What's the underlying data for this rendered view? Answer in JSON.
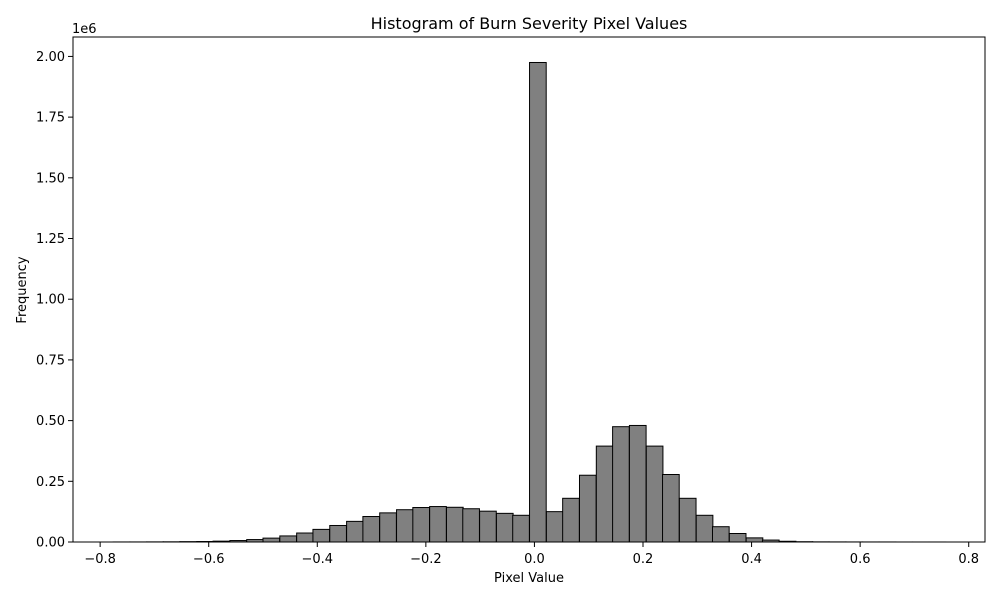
{
  "chart_data": {
    "type": "bar",
    "title": "Histogram of Burn Severity Pixel Values",
    "xlabel": "Pixel Value",
    "ylabel": "Frequency",
    "y_offset_text": "1e6",
    "xlim": [
      -0.85,
      0.83
    ],
    "ylim": [
      0,
      2.08
    ],
    "y_scale_factor": 1000000,
    "grid": false,
    "legend": "none",
    "bar_fill": "#808080",
    "bar_edge": "#000000",
    "x_ticks": [
      {
        "value": -0.8,
        "label": "−0.8"
      },
      {
        "value": -0.6,
        "label": "−0.6"
      },
      {
        "value": -0.4,
        "label": "−0.4"
      },
      {
        "value": -0.2,
        "label": "−0.2"
      },
      {
        "value": 0.0,
        "label": "0.0"
      },
      {
        "value": 0.2,
        "label": "0.2"
      },
      {
        "value": 0.4,
        "label": "0.4"
      },
      {
        "value": 0.6,
        "label": "0.6"
      },
      {
        "value": 0.8,
        "label": "0.8"
      }
    ],
    "y_ticks": [
      {
        "value": 0.0,
        "label": "0.00"
      },
      {
        "value": 0.25,
        "label": "0.25"
      },
      {
        "value": 0.5,
        "label": "0.50"
      },
      {
        "value": 0.75,
        "label": "0.75"
      },
      {
        "value": 1.0,
        "label": "1.00"
      },
      {
        "value": 1.25,
        "label": "1.25"
      },
      {
        "value": 1.5,
        "label": "1.50"
      },
      {
        "value": 1.75,
        "label": "1.75"
      },
      {
        "value": 2.0,
        "label": "2.00"
      }
    ],
    "bin_width": 0.0307,
    "bins": [
      {
        "x0": -0.776,
        "value": 0.0002
      },
      {
        "x0": -0.745,
        "value": 0.0003
      },
      {
        "x0": -0.714,
        "value": 0.0005
      },
      {
        "x0": -0.684,
        "value": 0.0008
      },
      {
        "x0": -0.653,
        "value": 0.0015
      },
      {
        "x0": -0.622,
        "value": 0.002
      },
      {
        "x0": -0.592,
        "value": 0.0035
      },
      {
        "x0": -0.561,
        "value": 0.006
      },
      {
        "x0": -0.53,
        "value": 0.01
      },
      {
        "x0": -0.5,
        "value": 0.016
      },
      {
        "x0": -0.469,
        "value": 0.025
      },
      {
        "x0": -0.438,
        "value": 0.037
      },
      {
        "x0": -0.408,
        "value": 0.052
      },
      {
        "x0": -0.377,
        "value": 0.068
      },
      {
        "x0": -0.346,
        "value": 0.085
      },
      {
        "x0": -0.316,
        "value": 0.105
      },
      {
        "x0": -0.285,
        "value": 0.12
      },
      {
        "x0": -0.254,
        "value": 0.133
      },
      {
        "x0": -0.224,
        "value": 0.142
      },
      {
        "x0": -0.193,
        "value": 0.146
      },
      {
        "x0": -0.162,
        "value": 0.143
      },
      {
        "x0": -0.132,
        "value": 0.137
      },
      {
        "x0": -0.101,
        "value": 0.127
      },
      {
        "x0": -0.07,
        "value": 0.118
      },
      {
        "x0": -0.04,
        "value": 0.11
      },
      {
        "x0": -0.009,
        "value": 1.975
      },
      {
        "x0": 0.022,
        "value": 0.125
      },
      {
        "x0": 0.052,
        "value": 0.18
      },
      {
        "x0": 0.083,
        "value": 0.275
      },
      {
        "x0": 0.114,
        "value": 0.395
      },
      {
        "x0": 0.144,
        "value": 0.475
      },
      {
        "x0": 0.175,
        "value": 0.48
      },
      {
        "x0": 0.206,
        "value": 0.395
      },
      {
        "x0": 0.236,
        "value": 0.278
      },
      {
        "x0": 0.267,
        "value": 0.18
      },
      {
        "x0": 0.298,
        "value": 0.11
      },
      {
        "x0": 0.328,
        "value": 0.063
      },
      {
        "x0": 0.359,
        "value": 0.035
      },
      {
        "x0": 0.39,
        "value": 0.017
      },
      {
        "x0": 0.42,
        "value": 0.008
      },
      {
        "x0": 0.451,
        "value": 0.003
      },
      {
        "x0": 0.482,
        "value": 0.0012
      },
      {
        "x0": 0.512,
        "value": 0.0006
      },
      {
        "x0": 0.543,
        "value": 0.0004
      },
      {
        "x0": 0.574,
        "value": 0.0003
      },
      {
        "x0": 0.604,
        "value": 0.0002
      },
      {
        "x0": 0.635,
        "value": 0.0002
      },
      {
        "x0": 0.666,
        "value": 0.0001
      },
      {
        "x0": 0.696,
        "value": 0.0001
      },
      {
        "x0": 0.727,
        "value": 0.0001
      }
    ]
  }
}
